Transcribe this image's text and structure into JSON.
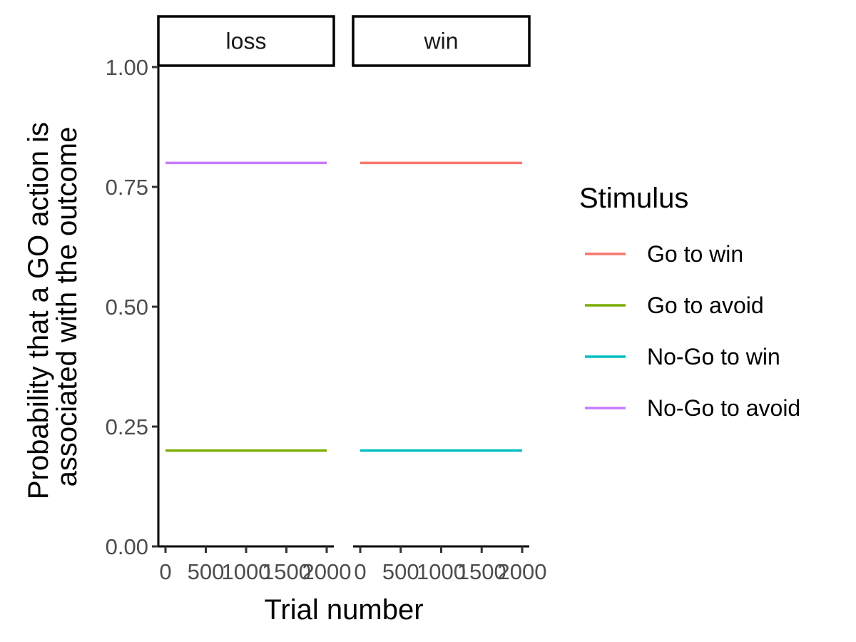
{
  "chart_data": {
    "type": "line",
    "facets": [
      "loss",
      "win"
    ],
    "xlabel": "Trial number",
    "ylabel_lines": [
      "Probability that a GO action is",
      "associated with the outcome"
    ],
    "xlim": [
      0,
      2000
    ],
    "ylim": [
      0,
      1
    ],
    "x_ticks": [
      0,
      500,
      1000,
      1500,
      2000
    ],
    "x_tick_labels": [
      "0",
      "500",
      "1000",
      "1500",
      "2000"
    ],
    "y_ticks": [
      0,
      0.25,
      0.5,
      0.75,
      1
    ],
    "y_tick_labels": [
      "0.00",
      "0.25",
      "0.50",
      "0.75",
      "1.00"
    ],
    "legend_title": "Stimulus",
    "legend_position": "right",
    "grid": false,
    "series": [
      {
        "name": "Go to win",
        "color": "#F8766D",
        "facet": "win",
        "x": [
          0,
          2000
        ],
        "y": [
          0.8,
          0.8
        ]
      },
      {
        "name": "Go to avoid",
        "color": "#7CAE00",
        "facet": "loss",
        "x": [
          0,
          2000
        ],
        "y": [
          0.2,
          0.2
        ]
      },
      {
        "name": "No-Go to win",
        "color": "#00BFC4",
        "facet": "win",
        "x": [
          0,
          2000
        ],
        "y": [
          0.2,
          0.2
        ]
      },
      {
        "name": "No-Go to avoid",
        "color": "#C77CFF",
        "facet": "loss",
        "x": [
          0,
          2000
        ],
        "y": [
          0.8,
          0.8
        ]
      }
    ]
  }
}
